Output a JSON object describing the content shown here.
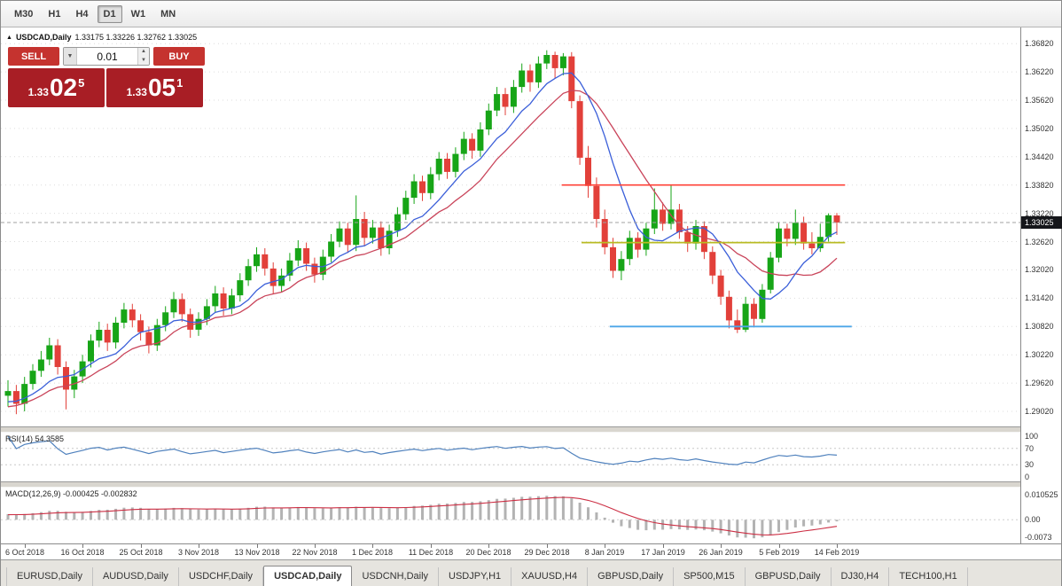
{
  "toolbar": {
    "timeframes": [
      "M30",
      "H1",
      "H4",
      "D1",
      "W1",
      "MN"
    ],
    "active_timeframe": "D1"
  },
  "chart_header": {
    "marker": "▲",
    "title": "USDCAD,Daily",
    "ohlc": "1.33175 1.33226 1.32762 1.33025"
  },
  "trade_panel": {
    "sell_label": "SELL",
    "buy_label": "BUY",
    "lot_size": "0.01",
    "sell_price": {
      "prefix": "1.33",
      "big": "02",
      "sup": "5"
    },
    "buy_price": {
      "prefix": "1.33",
      "big": "05",
      "sup": "1"
    }
  },
  "indicators": {
    "rsi_label": "RSI(14) 54.3585",
    "macd_label": "MACD(12,26,9) -0.000425 -0.002832",
    "rsi_axis": [
      "100",
      "70",
      "30",
      "0"
    ],
    "macd_axis": [
      "0.010525",
      "0.00",
      "-0.0073"
    ]
  },
  "price_axis": {
    "labels": [
      "1.36820",
      "1.36220",
      "1.35620",
      "1.35020",
      "1.34420",
      "1.33820",
      "1.33220",
      "1.32620",
      "1.32020",
      "1.31420",
      "1.30820",
      "1.30220",
      "1.29620",
      "1.29020"
    ],
    "current": "1.33025"
  },
  "tabs": [
    "EURUSD,Daily",
    "AUDUSD,Daily",
    "USDCHF,Daily",
    "USDCAD,Daily",
    "USDCNH,Daily",
    "USDJPY,H1",
    "XAUUSD,H4",
    "GBPUSD,Daily",
    "SP500,M15",
    "GBPUSD,Daily",
    "DJ30,H4",
    "TECH100,H1"
  ],
  "active_tab_index": 3,
  "colors": {
    "bull": "#17a517",
    "bear": "#e2403a",
    "ma_fast": "#3b5fd9",
    "ma_slow": "#c9445a",
    "hline_resistance": "#ff4136",
    "hline_mid": "#b8bb22",
    "hline_support": "#4da6e8",
    "rsi_line": "#4f81bd",
    "macd_hist": "#b3b3b3",
    "macd_signal": "#cc2f44",
    "trade_button": "#c5332f",
    "trade_box": "#a81e25",
    "badge_bg": "#15161a",
    "current_price_line": "#a0a0a0",
    "grid": "#dcdcdc"
  },
  "chart_data": {
    "type": "candlestick",
    "symbol": "USDCAD",
    "timeframe": "Daily",
    "title": "USDCAD,Daily",
    "last_ohlc": {
      "open": 1.33175,
      "high": 1.33226,
      "low": 1.32762,
      "close": 1.33025
    },
    "current_price": 1.33025,
    "price_range": [
      1.2885,
      1.3705
    ],
    "candles": [
      [
        1.2935,
        1.2968,
        1.2912,
        1.2945
      ],
      [
        1.2945,
        1.2958,
        1.2896,
        1.2918
      ],
      [
        1.2918,
        1.2975,
        1.2902,
        1.296
      ],
      [
        1.296,
        1.3002,
        1.2948,
        1.2988
      ],
      [
        1.2988,
        1.303,
        1.2975,
        1.3012
      ],
      [
        1.3012,
        1.3058,
        1.3,
        1.3042
      ],
      [
        1.3042,
        1.3055,
        1.298,
        1.2996
      ],
      [
        1.2996,
        1.3008,
        1.2906,
        1.2948
      ],
      [
        1.2948,
        1.299,
        1.293,
        1.2976
      ],
      [
        1.2976,
        1.3022,
        1.2962,
        1.3008
      ],
      [
        1.3008,
        1.3065,
        1.2995,
        1.3052
      ],
      [
        1.3052,
        1.3092,
        1.3038,
        1.3075
      ],
      [
        1.3075,
        1.3088,
        1.303,
        1.3048
      ],
      [
        1.3048,
        1.3102,
        1.3035,
        1.309
      ],
      [
        1.309,
        1.3132,
        1.3078,
        1.3118
      ],
      [
        1.3118,
        1.313,
        1.308,
        1.3095
      ],
      [
        1.3095,
        1.3108,
        1.3052,
        1.307
      ],
      [
        1.307,
        1.3082,
        1.3025,
        1.3042
      ],
      [
        1.3042,
        1.3098,
        1.303,
        1.3085
      ],
      [
        1.3085,
        1.3125,
        1.3072,
        1.3112
      ],
      [
        1.3112,
        1.3155,
        1.31,
        1.314
      ],
      [
        1.314,
        1.3152,
        1.3092,
        1.3108
      ],
      [
        1.3108,
        1.312,
        1.3058,
        1.3075
      ],
      [
        1.3075,
        1.3112,
        1.3062,
        1.3098
      ],
      [
        1.3098,
        1.314,
        1.3085,
        1.3125
      ],
      [
        1.3125,
        1.3168,
        1.3112,
        1.3152
      ],
      [
        1.3152,
        1.3165,
        1.3105,
        1.312
      ],
      [
        1.312,
        1.3162,
        1.3108,
        1.3148
      ],
      [
        1.3148,
        1.3195,
        1.3135,
        1.318
      ],
      [
        1.318,
        1.3225,
        1.3168,
        1.321
      ],
      [
        1.321,
        1.325,
        1.3198,
        1.3235
      ],
      [
        1.3235,
        1.3248,
        1.319,
        1.3205
      ],
      [
        1.3205,
        1.3218,
        1.315,
        1.3168
      ],
      [
        1.3168,
        1.3205,
        1.3155,
        1.319
      ],
      [
        1.319,
        1.3238,
        1.3178,
        1.3222
      ],
      [
        1.3222,
        1.3265,
        1.321,
        1.3248
      ],
      [
        1.3248,
        1.326,
        1.32,
        1.3215
      ],
      [
        1.3215,
        1.3228,
        1.3175,
        1.3192
      ],
      [
        1.3192,
        1.3245,
        1.318,
        1.323
      ],
      [
        1.323,
        1.3278,
        1.3218,
        1.3262
      ],
      [
        1.3262,
        1.3305,
        1.325,
        1.329
      ],
      [
        1.329,
        1.3302,
        1.3238,
        1.3255
      ],
      [
        1.3255,
        1.336,
        1.3242,
        1.331
      ],
      [
        1.331,
        1.3325,
        1.3252,
        1.327
      ],
      [
        1.327,
        1.3308,
        1.3258,
        1.3292
      ],
      [
        1.3292,
        1.3305,
        1.3232,
        1.3248
      ],
      [
        1.3248,
        1.3298,
        1.3235,
        1.3285
      ],
      [
        1.3285,
        1.3335,
        1.3272,
        1.332
      ],
      [
        1.332,
        1.337,
        1.3308,
        1.3355
      ],
      [
        1.3355,
        1.3405,
        1.3342,
        1.339
      ],
      [
        1.339,
        1.3402,
        1.3348,
        1.3365
      ],
      [
        1.3365,
        1.342,
        1.3352,
        1.3405
      ],
      [
        1.3405,
        1.3452,
        1.3392,
        1.3438
      ],
      [
        1.3438,
        1.345,
        1.3395,
        1.341
      ],
      [
        1.341,
        1.3462,
        1.3398,
        1.3448
      ],
      [
        1.3448,
        1.3495,
        1.3435,
        1.348
      ],
      [
        1.348,
        1.3492,
        1.3438,
        1.3455
      ],
      [
        1.3455,
        1.3515,
        1.3442,
        1.35
      ],
      [
        1.35,
        1.3555,
        1.3488,
        1.354
      ],
      [
        1.354,
        1.359,
        1.3528,
        1.3575
      ],
      [
        1.3575,
        1.3588,
        1.353,
        1.3548
      ],
      [
        1.3548,
        1.3605,
        1.3535,
        1.359
      ],
      [
        1.359,
        1.364,
        1.3578,
        1.3625
      ],
      [
        1.3625,
        1.3638,
        1.358,
        1.36
      ],
      [
        1.36,
        1.3655,
        1.3588,
        1.364
      ],
      [
        1.364,
        1.3668,
        1.3628,
        1.3658
      ],
      [
        1.3658,
        1.3665,
        1.3608,
        1.363
      ],
      [
        1.363,
        1.3662,
        1.3615,
        1.3655
      ],
      [
        1.3655,
        1.3664,
        1.3545,
        1.356
      ],
      [
        1.356,
        1.3572,
        1.3425,
        1.344
      ],
      [
        1.344,
        1.3465,
        1.3355,
        1.338
      ],
      [
        1.338,
        1.3398,
        1.3292,
        1.331
      ],
      [
        1.331,
        1.333,
        1.3235,
        1.325
      ],
      [
        1.325,
        1.327,
        1.3185,
        1.32
      ],
      [
        1.32,
        1.3242,
        1.318,
        1.3225
      ],
      [
        1.3225,
        1.3285,
        1.3212,
        1.327
      ],
      [
        1.327,
        1.3282,
        1.3228,
        1.3245
      ],
      [
        1.3245,
        1.3302,
        1.3232,
        1.329
      ],
      [
        1.329,
        1.3375,
        1.3278,
        1.333
      ],
      [
        1.333,
        1.3345,
        1.3285,
        1.33
      ],
      [
        1.33,
        1.3382,
        1.3288,
        1.333
      ],
      [
        1.333,
        1.3342,
        1.3268,
        1.3282
      ],
      [
        1.3282,
        1.3295,
        1.324,
        1.3258
      ],
      [
        1.3258,
        1.3308,
        1.3245,
        1.3295
      ],
      [
        1.3295,
        1.3305,
        1.3225,
        1.324
      ],
      [
        1.324,
        1.3252,
        1.3172,
        1.319
      ],
      [
        1.319,
        1.3202,
        1.3128,
        1.3145
      ],
      [
        1.3145,
        1.3158,
        1.3078,
        1.3095
      ],
      [
        1.3095,
        1.3118,
        1.3068,
        1.3075
      ],
      [
        1.3075,
        1.3145,
        1.307,
        1.313
      ],
      [
        1.313,
        1.3142,
        1.308,
        1.3098
      ],
      [
        1.3098,
        1.3172,
        1.309,
        1.316
      ],
      [
        1.316,
        1.324,
        1.3152,
        1.3228
      ],
      [
        1.3228,
        1.3302,
        1.3218,
        1.329
      ],
      [
        1.329,
        1.33,
        1.3252,
        1.3268
      ],
      [
        1.3268,
        1.333,
        1.3255,
        1.3302
      ],
      [
        1.3302,
        1.3315,
        1.3245,
        1.3258
      ],
      [
        1.3258,
        1.3282,
        1.3235,
        1.3248
      ],
      [
        1.3248,
        1.33,
        1.324,
        1.3272
      ],
      [
        1.3272,
        1.3322,
        1.3262,
        1.3318
      ],
      [
        1.33175,
        1.33226,
        1.32762,
        1.33025
      ]
    ],
    "date_labels": [
      {
        "index": 2,
        "label": "6 Oct 2018"
      },
      {
        "index": 9,
        "label": "16 Oct 2018"
      },
      {
        "index": 16,
        "label": "25 Oct 2018"
      },
      {
        "index": 23,
        "label": "3 Nov 2018"
      },
      {
        "index": 30,
        "label": "13 Nov 2018"
      },
      {
        "index": 37,
        "label": "22 Nov 2018"
      },
      {
        "index": 44,
        "label": "1 Dec 2018"
      },
      {
        "index": 51,
        "label": "11 Dec 2018"
      },
      {
        "index": 58,
        "label": "20 Dec 2018"
      },
      {
        "index": 65,
        "label": "29 Dec 2018"
      },
      {
        "index": 72,
        "label": "8 Jan 2019"
      },
      {
        "index": 79,
        "label": "17 Jan 2019"
      },
      {
        "index": 86,
        "label": "26 Jan 2019"
      },
      {
        "index": 93,
        "label": "5 Feb 2019"
      },
      {
        "index": 100,
        "label": "14 Feb 2019"
      }
    ],
    "hlines": [
      {
        "price": 1.3382,
        "from": 66.8,
        "to": 101,
        "color_key": "hline_resistance",
        "width": 1.6
      },
      {
        "price": 1.326,
        "from": 69.2,
        "to": 101,
        "color_key": "hline_mid",
        "width": 1.8
      },
      {
        "price": 1.3082,
        "from": 72.6,
        "to": 101.8,
        "color_key": "hline_support",
        "width": 1.8
      }
    ],
    "moving_averages": [
      {
        "period": 8,
        "color_key": "ma_fast"
      },
      {
        "period": 13,
        "color_key": "ma_slow"
      }
    ],
    "rsi": {
      "period": 14,
      "value": 54.3585,
      "levels": [
        70,
        30
      ],
      "scale": [
        0,
        100
      ]
    },
    "macd": {
      "fast": 12,
      "slow": 26,
      "signal": 9,
      "value": -0.000425,
      "signal_value": -0.002832,
      "scale_max": 0.010525,
      "scale_min": -0.0073
    }
  }
}
